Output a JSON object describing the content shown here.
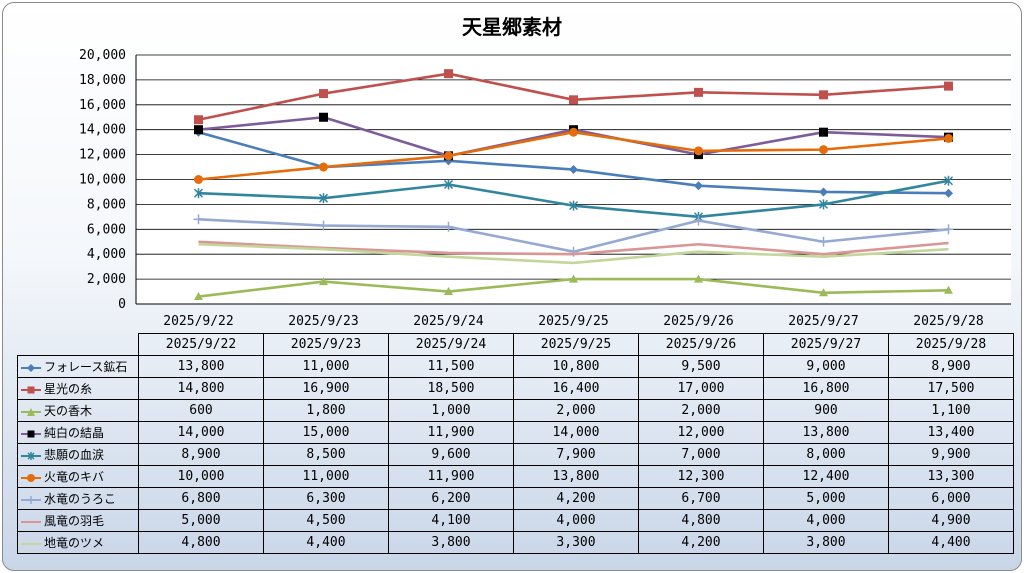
{
  "chart_data": {
    "type": "line",
    "title": "天星郷素材",
    "categories": [
      "2025/9/22",
      "2025/9/23",
      "2025/9/24",
      "2025/9/25",
      "2025/9/26",
      "2025/9/27",
      "2025/9/28"
    ],
    "ylim": [
      0,
      20000
    ],
    "yticks": [
      "0",
      "2,000",
      "4,000",
      "6,000",
      "8,000",
      "10,000",
      "12,000",
      "14,000",
      "16,000",
      "18,000",
      "20,000"
    ],
    "ytick_values": [
      0,
      2000,
      4000,
      6000,
      8000,
      10000,
      12000,
      14000,
      16000,
      18000,
      20000
    ],
    "grid": true,
    "legend": "data-table",
    "series": [
      {
        "name": "フォレース鉱石",
        "color": "#4a7ebb",
        "marker": "diamond",
        "values": [
          13800,
          11000,
          11500,
          10800,
          9500,
          9000,
          8900
        ],
        "labels": [
          "13,800",
          "11,000",
          "11,500",
          "10,800",
          "9,500",
          "9,000",
          "8,900"
        ]
      },
      {
        "name": "星光の糸",
        "color": "#c0504d",
        "marker": "square",
        "values": [
          14800,
          16900,
          18500,
          16400,
          17000,
          16800,
          17500
        ],
        "labels": [
          "14,800",
          "16,900",
          "18,500",
          "16,400",
          "17,000",
          "16,800",
          "17,500"
        ]
      },
      {
        "name": "天の香木",
        "color": "#9bbb59",
        "marker": "triangle",
        "values": [
          600,
          1800,
          1000,
          2000,
          2000,
          900,
          1100
        ],
        "labels": [
          "600",
          "1,800",
          "1,000",
          "2,000",
          "2,000",
          "900",
          "1,100"
        ]
      },
      {
        "name": "純白の結晶",
        "color": "#7d5c99",
        "marker": "blacksquare",
        "values": [
          14000,
          15000,
          11900,
          14000,
          12000,
          13800,
          13400
        ],
        "labels": [
          "14,000",
          "15,000",
          "11,900",
          "14,000",
          "12,000",
          "13,800",
          "13,400"
        ]
      },
      {
        "name": "悲願の血涙",
        "color": "#31859c",
        "marker": "asterisk",
        "values": [
          8900,
          8500,
          9600,
          7900,
          7000,
          8000,
          9900
        ],
        "labels": [
          "8,900",
          "8,500",
          "9,600",
          "7,900",
          "7,000",
          "8,000",
          "9,900"
        ]
      },
      {
        "name": "火竜のキバ",
        "color": "#e46c0a",
        "marker": "circle",
        "values": [
          10000,
          11000,
          11900,
          13800,
          12300,
          12400,
          13300
        ],
        "labels": [
          "10,000",
          "11,000",
          "11,900",
          "13,800",
          "12,300",
          "12,400",
          "13,300"
        ]
      },
      {
        "name": "水竜のうろこ",
        "color": "#95a9d3",
        "marker": "plus",
        "values": [
          6800,
          6300,
          6200,
          4200,
          6700,
          5000,
          6000
        ],
        "labels": [
          "6,800",
          "6,300",
          "6,200",
          "4,200",
          "6,700",
          "5,000",
          "6,000"
        ]
      },
      {
        "name": "風竜の羽毛",
        "color": "#d99694",
        "marker": "none",
        "values": [
          5000,
          4500,
          4100,
          4000,
          4800,
          4000,
          4900
        ],
        "labels": [
          "5,000",
          "4,500",
          "4,100",
          "4,000",
          "4,800",
          "4,000",
          "4,900"
        ]
      },
      {
        "name": "地竜のツメ",
        "color": "#c3d69b",
        "marker": "none",
        "values": [
          4800,
          4400,
          3800,
          3300,
          4200,
          3800,
          4400
        ],
        "labels": [
          "4,800",
          "4,400",
          "3,800",
          "3,300",
          "4,200",
          "3,800",
          "4,400"
        ]
      }
    ]
  }
}
